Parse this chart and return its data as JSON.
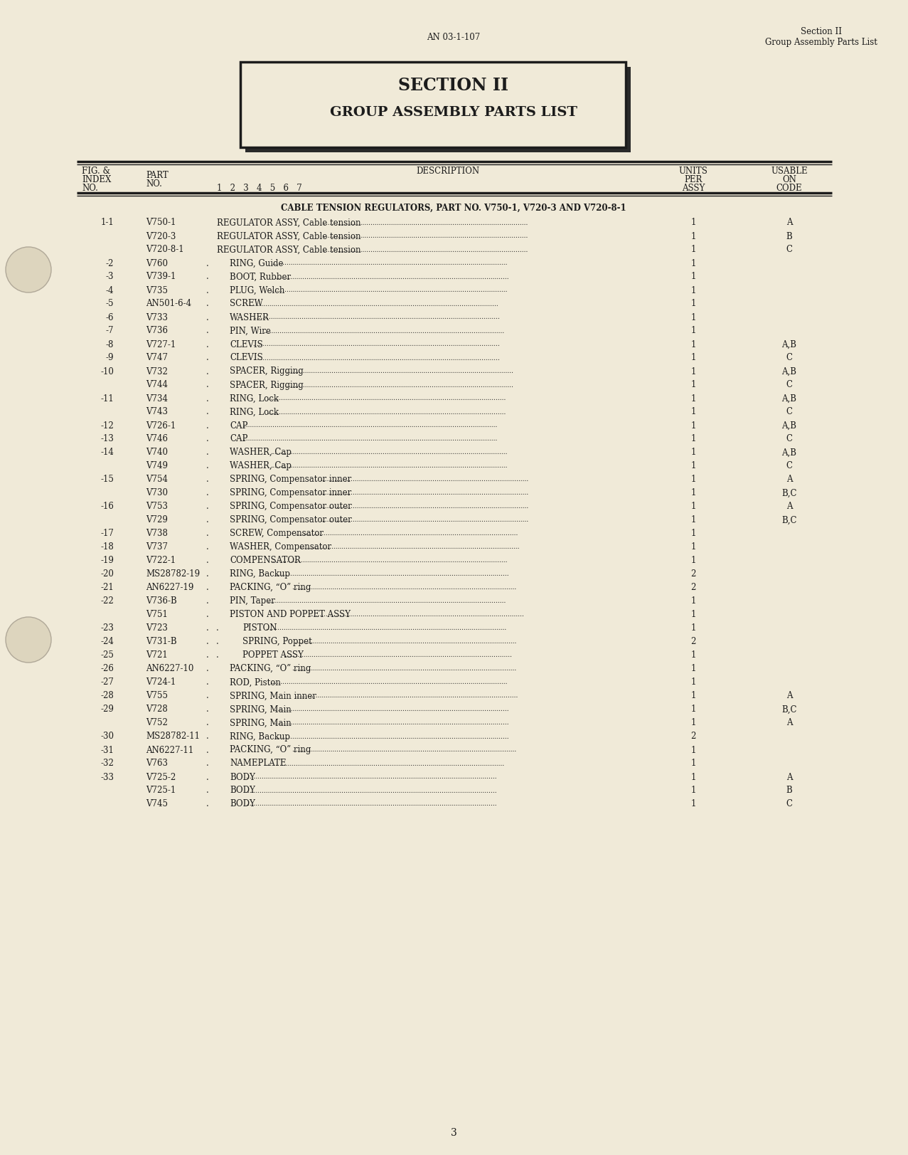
{
  "bg_color": "#f0ead8",
  "page_num": "3",
  "header_left": "AN 03-1-107",
  "header_right_line1": "Section II",
  "header_right_line2": "Group Assembly Parts List",
  "section_box_title": "SECTION II",
  "section_box_subtitle": "GROUP ASSEMBLY PARTS LIST",
  "cable_tension_header": "CABLE TENSION REGULATORS, PART NO. V750-1, V720-3 AND V720-8-1",
  "rows": [
    {
      "fig": "1-1",
      "part": "V750-1",
      "indent": 0,
      "description": "REGULATOR ASSY, Cable tension",
      "qty": "1",
      "code": "A"
    },
    {
      "fig": "",
      "part": "V720-3",
      "indent": 0,
      "description": "REGULATOR ASSY, Cable tension",
      "qty": "1",
      "code": "B"
    },
    {
      "fig": "",
      "part": "V720-8-1",
      "indent": 0,
      "description": "REGULATOR ASSY, Cable tension",
      "qty": "1",
      "code": "C"
    },
    {
      "fig": "-2",
      "part": "V760",
      "indent": 1,
      "description": "RING, Guide",
      "qty": "1",
      "code": ""
    },
    {
      "fig": "-3",
      "part": "V739-1",
      "indent": 1,
      "description": "BOOT, Rubber",
      "qty": "1",
      "code": ""
    },
    {
      "fig": "-4",
      "part": "V735",
      "indent": 1,
      "description": "PLUG, Welch",
      "qty": "1",
      "code": ""
    },
    {
      "fig": "-5",
      "part": "AN501-6-4",
      "indent": 1,
      "description": "SCREW",
      "qty": "1",
      "code": ""
    },
    {
      "fig": "-6",
      "part": "V733",
      "indent": 1,
      "description": "WASHER",
      "qty": "1",
      "code": ""
    },
    {
      "fig": "-7",
      "part": "V736",
      "indent": 1,
      "description": "PIN, Wire",
      "qty": "1",
      "code": ""
    },
    {
      "fig": "-8",
      "part": "V727-1",
      "indent": 1,
      "description": "CLEVIS",
      "qty": "1",
      "code": "A,B"
    },
    {
      "fig": "-9",
      "part": "V747",
      "indent": 1,
      "description": "CLEVIS",
      "qty": "1",
      "code": "C"
    },
    {
      "fig": "-10",
      "part": "V732",
      "indent": 1,
      "description": "SPACER, Rigging",
      "qty": "1",
      "code": "A,B"
    },
    {
      "fig": "",
      "part": "V744",
      "indent": 1,
      "description": "SPACER, Rigging",
      "qty": "1",
      "code": "C"
    },
    {
      "fig": "-11",
      "part": "V734",
      "indent": 1,
      "description": "RING, Lock",
      "qty": "1",
      "code": "A,B"
    },
    {
      "fig": "",
      "part": "V743",
      "indent": 1,
      "description": "RING, Lock",
      "qty": "1",
      "code": "C"
    },
    {
      "fig": "-12",
      "part": "V726-1",
      "indent": 1,
      "description": "CAP",
      "qty": "1",
      "code": "A,B"
    },
    {
      "fig": "-13",
      "part": "V746",
      "indent": 1,
      "description": "CAP",
      "qty": "1",
      "code": "C"
    },
    {
      "fig": "-14",
      "part": "V740",
      "indent": 1,
      "description": "WASHER, Cap",
      "qty": "1",
      "code": "A,B"
    },
    {
      "fig": "",
      "part": "V749",
      "indent": 1,
      "description": "WASHER, Cap",
      "qty": "1",
      "code": "C"
    },
    {
      "fig": "-15",
      "part": "V754",
      "indent": 1,
      "description": "SPRING, Compensator inner",
      "qty": "1",
      "code": "A"
    },
    {
      "fig": "",
      "part": "V730",
      "indent": 1,
      "description": "SPRING, Compensator inner",
      "qty": "1",
      "code": "B,C"
    },
    {
      "fig": "-16",
      "part": "V753",
      "indent": 1,
      "description": "SPRING, Compensator outer",
      "qty": "1",
      "code": "A"
    },
    {
      "fig": "",
      "part": "V729",
      "indent": 1,
      "description": "SPRING, Compensator outer",
      "qty": "1",
      "code": "B,C"
    },
    {
      "fig": "-17",
      "part": "V738",
      "indent": 1,
      "description": "SCREW, Compensator",
      "qty": "1",
      "code": ""
    },
    {
      "fig": "-18",
      "part": "V737",
      "indent": 1,
      "description": "WASHER, Compensator",
      "qty": "1",
      "code": ""
    },
    {
      "fig": "-19",
      "part": "V722-1",
      "indent": 1,
      "description": "COMPENSATOR",
      "qty": "1",
      "code": ""
    },
    {
      "fig": "-20",
      "part": "MS28782-19",
      "indent": 1,
      "description": "RING, Backup",
      "qty": "2",
      "code": ""
    },
    {
      "fig": "-21",
      "part": "AN6227-19",
      "indent": 1,
      "description": "PACKING, “O” ring",
      "qty": "2",
      "code": ""
    },
    {
      "fig": "-22",
      "part": "V736-B",
      "indent": 1,
      "description": "PIN, Taper",
      "qty": "1",
      "code": ""
    },
    {
      "fig": "",
      "part": "V751",
      "indent": 1,
      "description": "PISTON AND POPPET ASSY",
      "qty": "1",
      "code": ""
    },
    {
      "fig": "-23",
      "part": "V723",
      "indent": 2,
      "description": "PISTON",
      "qty": "1",
      "code": ""
    },
    {
      "fig": "-24",
      "part": "V731-B",
      "indent": 2,
      "description": "SPRING, Poppet",
      "qty": "2",
      "code": ""
    },
    {
      "fig": "-25",
      "part": "V721",
      "indent": 2,
      "description": "POPPET ASSY",
      "qty": "1",
      "code": ""
    },
    {
      "fig": "-26",
      "part": "AN6227-10",
      "indent": 1,
      "description": "PACKING, “O” ring",
      "qty": "1",
      "code": ""
    },
    {
      "fig": "-27",
      "part": "V724-1",
      "indent": 1,
      "description": "ROD, Piston",
      "qty": "1",
      "code": ""
    },
    {
      "fig": "-28",
      "part": "V755",
      "indent": 1,
      "description": "SPRING, Main inner",
      "qty": "1",
      "code": "A"
    },
    {
      "fig": "-29",
      "part": "V728",
      "indent": 1,
      "description": "SPRING, Main",
      "qty": "1",
      "code": "B,C"
    },
    {
      "fig": "",
      "part": "V752",
      "indent": 1,
      "description": "SPRING, Main",
      "qty": "1",
      "code": "A"
    },
    {
      "fig": "-30",
      "part": "MS28782-11",
      "indent": 1,
      "description": "RING, Backup",
      "qty": "2",
      "code": ""
    },
    {
      "fig": "-31",
      "part": "AN6227-11",
      "indent": 1,
      "description": "PACKING, “O” ring",
      "qty": "1",
      "code": ""
    },
    {
      "fig": "-32",
      "part": "V763",
      "indent": 1,
      "description": "NAMEPLATE",
      "qty": "1",
      "code": ""
    },
    {
      "fig": "-33",
      "part": "V725-2",
      "indent": 1,
      "description": "BODY",
      "qty": "1",
      "code": "A"
    },
    {
      "fig": "",
      "part": "V725-1",
      "indent": 1,
      "description": "BODY",
      "qty": "1",
      "code": "B"
    },
    {
      "fig": "",
      "part": "V745",
      "indent": 1,
      "description": "BODY",
      "qty": "1",
      "code": "C"
    }
  ]
}
